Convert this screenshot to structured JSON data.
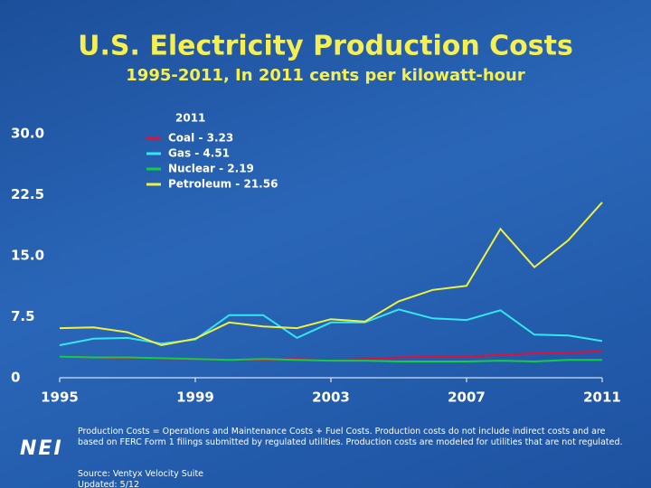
{
  "chart_data": {
    "type": "line",
    "title": "U.S. Electricity Production Costs",
    "subtitle": "1995-2011, In 2011 cents per kilowatt-hour",
    "legend_title": "2011",
    "legend": "upper-left",
    "x": [
      1995,
      1996,
      1997,
      1998,
      1999,
      2000,
      2001,
      2002,
      2003,
      2004,
      2005,
      2006,
      2007,
      2008,
      2009,
      2010,
      2011
    ],
    "series": [
      {
        "name": "Coal - 3.23",
        "color": "#e0103a",
        "values": [
          2.6,
          2.5,
          2.4,
          2.3,
          2.3,
          2.2,
          2.2,
          2.3,
          2.2,
          2.3,
          2.5,
          2.6,
          2.6,
          2.8,
          3.0,
          3.1,
          3.23
        ]
      },
      {
        "name": "Gas - 4.51",
        "color": "#33e6f0",
        "values": [
          4.0,
          4.8,
          4.9,
          4.2,
          4.7,
          7.7,
          7.7,
          4.9,
          6.8,
          6.8,
          8.4,
          7.3,
          7.1,
          8.3,
          5.3,
          5.2,
          4.51
        ]
      },
      {
        "name": "Nuclear - 2.19",
        "color": "#10d040",
        "values": [
          2.6,
          2.5,
          2.5,
          2.4,
          2.3,
          2.2,
          2.3,
          2.2,
          2.1,
          2.1,
          2.0,
          2.0,
          2.0,
          2.1,
          2.0,
          2.2,
          2.19
        ]
      },
      {
        "name": "Petroleum - 21.56",
        "color": "#f0f040",
        "values": [
          6.1,
          6.2,
          5.6,
          4.0,
          4.8,
          6.8,
          6.3,
          6.1,
          7.2,
          6.9,
          9.4,
          10.8,
          11.3,
          18.3,
          13.6,
          16.9,
          21.56
        ]
      }
    ],
    "xlim": [
      1995,
      2011
    ],
    "xticks": [
      1995,
      1999,
      2003,
      2007,
      2011
    ],
    "ylim": [
      0,
      30
    ],
    "yticks": [
      0,
      7.5,
      {
        "value": 15,
        "label": "15.0"
      },
      22.5,
      {
        "value": 30,
        "label": "30.0"
      }
    ],
    "grid": false
  },
  "footer": {
    "note": "Production Costs = Operations and Maintenance Costs + Fuel Costs. Production costs do not include indirect costs and are based on FERC Form 1 filings submitted by regulated utilities. Production costs are modeled for utilities that are not regulated.",
    "source": "Source: Ventyx Velocity Suite",
    "updated": "Updated: 5/12",
    "logo": "NEI"
  }
}
